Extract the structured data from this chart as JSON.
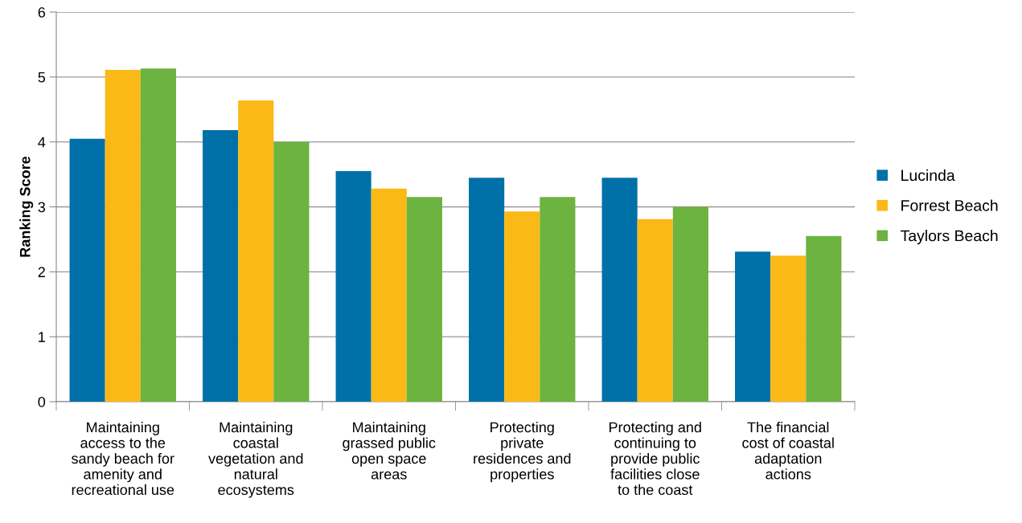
{
  "chart_data": {
    "type": "bar",
    "ylabel": "Ranking Score",
    "categories": [
      "Maintaining\naccess to the\nsandy beach for\namenity and\nrecreational use",
      "Maintaining\ncoastal\nvegetation and\nnatural\necosystems",
      "Maintaining\ngrassed public\nopen space\nareas",
      "Protecting\nprivate\nresidences and\nproperties",
      "Protecting and\ncontinuing to\nprovide public\nfacilities close\nto the coast",
      "The financial\ncost of coastal\nadaptation\nactions"
    ],
    "series": [
      {
        "name": "Lucinda",
        "color": "#0070a8",
        "values": [
          4.05,
          4.18,
          3.55,
          3.45,
          3.45,
          2.31
        ]
      },
      {
        "name": "Forrest Beach",
        "color": "#fbb917",
        "values": [
          5.11,
          4.64,
          3.28,
          2.93,
          2.81,
          2.25
        ]
      },
      {
        "name": "Taylors Beach",
        "color": "#6cb33f",
        "values": [
          5.13,
          4.0,
          3.15,
          3.15,
          3.0,
          2.55
        ]
      }
    ],
    "ylim": [
      0,
      6
    ],
    "yticks": [
      0,
      1,
      2,
      3,
      4,
      5,
      6
    ],
    "grid": "y",
    "legend": "right"
  }
}
